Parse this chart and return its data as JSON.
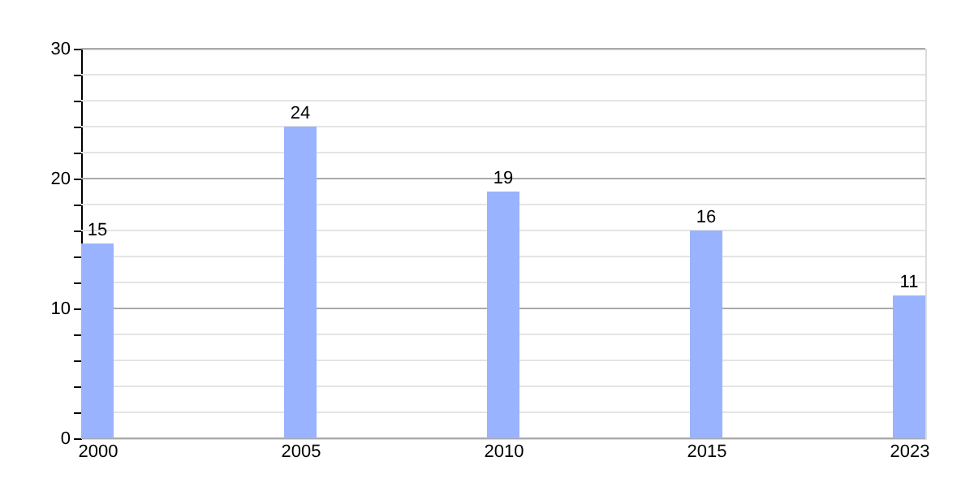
{
  "chart_data": {
    "type": "bar",
    "categories": [
      "2000",
      "2005",
      "2010",
      "2015",
      "2023"
    ],
    "series": [
      {
        "color": "#99b3ff",
        "values": [
          15,
          24,
          19,
          16,
          11
        ]
      }
    ],
    "ylim": [
      0,
      30
    ],
    "yticks": [
      0,
      {
        "value": 2,
        "label": null
      },
      {
        "value": 4,
        "label": null
      },
      {
        "value": 6,
        "label": null
      },
      {
        "value": 8,
        "label": null
      },
      10,
      {
        "value": 12,
        "label": null
      },
      {
        "value": 14,
        "label": null
      },
      {
        "value": 16,
        "label": null
      },
      {
        "value": 18,
        "label": null
      },
      20,
      {
        "value": 22,
        "label": null
      },
      {
        "value": 24,
        "label": null
      },
      {
        "value": 26,
        "label": null
      },
      {
        "value": 28,
        "label": null
      },
      30
    ],
    "grid": "y",
    "data_labels": true
  }
}
